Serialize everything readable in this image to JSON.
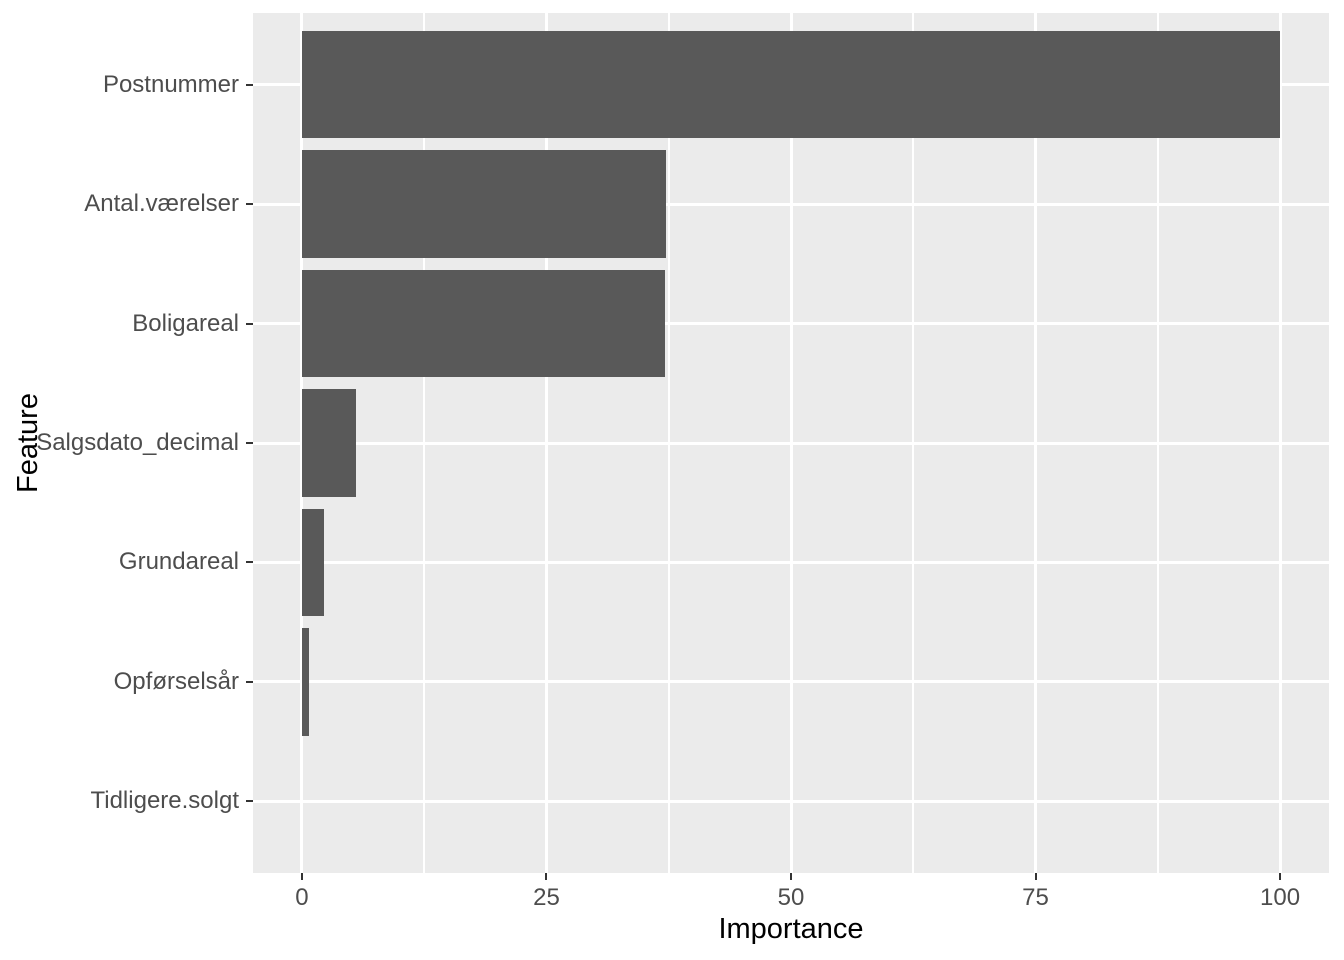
{
  "chart_data": {
    "type": "bar",
    "orientation": "horizontal",
    "title": "",
    "xlabel": "Importance",
    "ylabel": "Feature",
    "categories": [
      "Postnummer",
      "Antal.værelser",
      "Boligareal",
      "Salgsdato_decimal",
      "Grundareal",
      "Opførselsår",
      "Tidligere.solgt"
    ],
    "values": [
      100,
      37.2,
      37.1,
      5.5,
      2.3,
      0.7,
      0
    ],
    "x_ticks": [
      0,
      25,
      50,
      75,
      100
    ],
    "x_minor_gridlines": [
      12.5,
      37.5,
      62.5,
      87.5
    ],
    "xlim": [
      -5,
      105
    ],
    "legend_position": "none",
    "grid": true,
    "colors": {
      "bar_fill": "#595959",
      "panel_background": "#EBEBEB",
      "gridline": "#FFFFFF",
      "axis_text": "#4D4D4D",
      "axis_title": "#000000",
      "tick_mark": "#333333",
      "figure_background": "#FFFFFF"
    }
  }
}
